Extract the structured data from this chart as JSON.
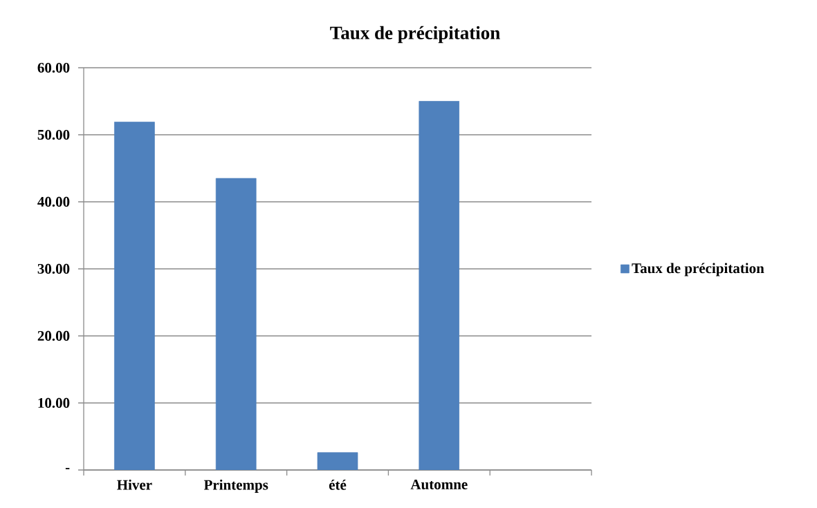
{
  "chart_data": {
    "type": "bar",
    "title": "Taux de précipitation",
    "categories": [
      "Hiver",
      "Printemps",
      "été",
      "Automne",
      null
    ],
    "series": [
      {
        "name": "Taux de précipitation",
        "color": "#4f81bd",
        "values": [
          51.9,
          43.5,
          2.6,
          55.0,
          null
        ]
      }
    ],
    "ylim": [
      0,
      60
    ],
    "yticks": [
      {
        "value": 0,
        "label": "-"
      },
      {
        "value": 10,
        "label": "10.00"
      },
      {
        "value": 20,
        "label": "20.00"
      },
      {
        "value": 30,
        "label": "30.00"
      },
      {
        "value": 40,
        "label": "40.00"
      },
      {
        "value": 50,
        "label": "50.00"
      },
      {
        "value": 60,
        "label": "60.00"
      }
    ],
    "grid": "y",
    "legend": "right"
  }
}
